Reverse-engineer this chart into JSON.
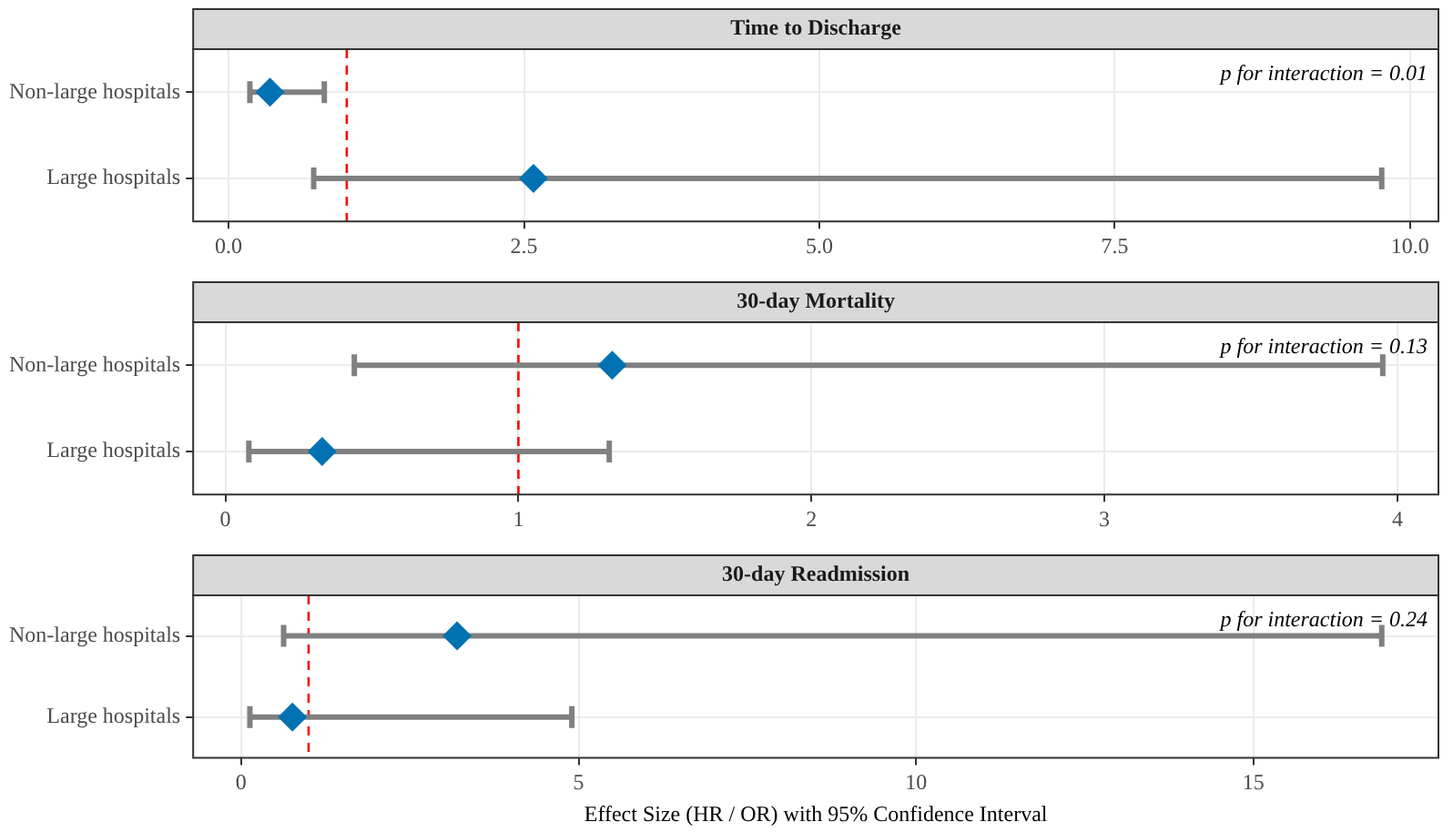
{
  "chart_data": [
    {
      "type": "scatter",
      "title": "Time to Discharge",
      "orientation": "horizontal",
      "categories": [
        "Non-large hospitals",
        "Large hospitals"
      ],
      "series": [
        {
          "color": "#0072b2",
          "values": [
            0.35,
            2.58
          ],
          "errors": [
            [
              0.18,
              0.81
            ],
            [
              0.72,
              9.76
            ]
          ]
        }
      ],
      "marker": "diamond",
      "xlim": [
        -0.3,
        10.24
      ],
      "xticks": [
        {
          "value": 0,
          "label": "0.0"
        },
        {
          "value": 2.5,
          "label": "2.5"
        },
        {
          "value": 5,
          "label": "5.0"
        },
        {
          "value": 7.5,
          "label": "7.5"
        },
        {
          "value": 10,
          "label": "10.0"
        }
      ],
      "ref_lines": [
        {
          "axis": "x",
          "value": 1,
          "color": "#ff0000",
          "line_style": "dashed"
        }
      ],
      "annotations": [
        "p for interaction = 0.01"
      ],
      "grid": true,
      "legend": false
    },
    {
      "type": "scatter",
      "title": "30-day Mortality",
      "orientation": "horizontal",
      "categories": [
        "Non-large hospitals",
        "Large hospitals"
      ],
      "series": [
        {
          "color": "#0072b2",
          "values": [
            1.32,
            0.33
          ],
          "errors": [
            [
              0.44,
              3.95
            ],
            [
              0.08,
              1.31
            ]
          ]
        }
      ],
      "marker": "diamond",
      "xlim": [
        -0.11,
        4.14
      ],
      "xticks": [
        0,
        1,
        2,
        3,
        4
      ],
      "ref_lines": [
        {
          "axis": "x",
          "value": 1,
          "color": "#ff0000",
          "line_style": "dashed"
        }
      ],
      "annotations": [
        "p for interaction = 0.13"
      ],
      "grid": true,
      "legend": false
    },
    {
      "type": "scatter",
      "title": "30-day Readmission",
      "orientation": "horizontal",
      "categories": [
        "Non-large hospitals",
        "Large hospitals"
      ],
      "series": [
        {
          "color": "#0072b2",
          "values": [
            3.2,
            0.76
          ],
          "errors": [
            [
              0.63,
              16.9
            ],
            [
              0.13,
              4.9
            ]
          ]
        }
      ],
      "marker": "diamond",
      "xlim": [
        -0.71,
        17.74
      ],
      "xticks": [
        0,
        5,
        10,
        15
      ],
      "xlabel": "Effect Size (HR / OR) with 95% Confidence Interval",
      "ref_lines": [
        {
          "axis": "x",
          "value": 1,
          "color": "#ff0000",
          "line_style": "dashed"
        }
      ],
      "annotations": [
        "p for interaction = 0.24"
      ],
      "grid": true,
      "legend": false
    }
  ]
}
